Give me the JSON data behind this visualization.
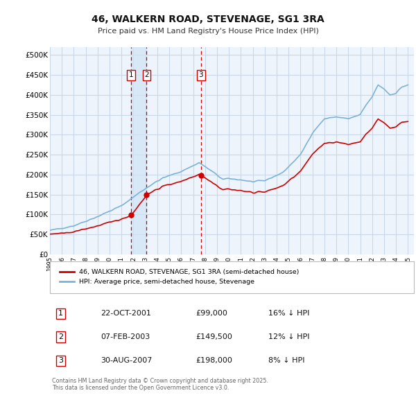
{
  "title": "46, WALKERN ROAD, STEVENAGE, SG1 3RA",
  "subtitle": "Price paid vs. HM Land Registry's House Price Index (HPI)",
  "bg_color": "#ffffff",
  "chart_bg": "#eef4fb",
  "grid_color": "#c8d8ea",
  "sale_color": "#cc0000",
  "hpi_color": "#7ab3d8",
  "vline_color": "#cc0000",
  "shade_color": "#d0e4f5",
  "xlim_start": 1995.0,
  "xlim_end": 2025.5,
  "ylim_min": 0,
  "ylim_max": 520000,
  "yticks": [
    0,
    50000,
    100000,
    150000,
    200000,
    250000,
    300000,
    350000,
    400000,
    450000,
    500000
  ],
  "ytick_labels": [
    "£0",
    "£50K",
    "£100K",
    "£150K",
    "£200K",
    "£250K",
    "£300K",
    "£350K",
    "£400K",
    "£450K",
    "£500K"
  ],
  "transaction_dates": [
    2001.81,
    2003.1,
    2007.66
  ],
  "transaction_prices": [
    99000,
    149500,
    198000
  ],
  "transaction_labels": [
    "1",
    "2",
    "3"
  ],
  "legend_sale_label": "46, WALKERN ROAD, STEVENAGE, SG1 3RA (semi-detached house)",
  "legend_hpi_label": "HPI: Average price, semi-detached house, Stevenage",
  "table_rows": [
    [
      "1",
      "22-OCT-2001",
      "£99,000",
      "16% ↓ HPI"
    ],
    [
      "2",
      "07-FEB-2003",
      "£149,500",
      "12% ↓ HPI"
    ],
    [
      "3",
      "30-AUG-2007",
      "£198,000",
      "8% ↓ HPI"
    ]
  ],
  "footnote": "Contains HM Land Registry data © Crown copyright and database right 2025.\nThis data is licensed under the Open Government Licence v3.0."
}
